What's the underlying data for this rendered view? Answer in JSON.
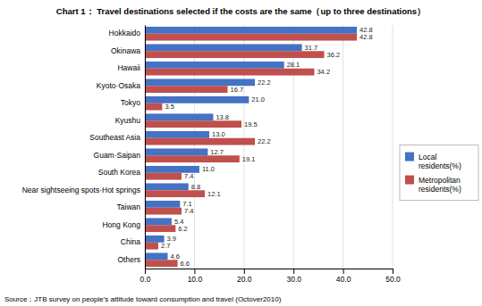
{
  "chart_data": {
    "type": "bar",
    "orientation": "horizontal",
    "title": "Chart 1： Travel destinations selected if the costs are the same（up to three destinations）",
    "annotations": [
      "Source：JTB survey on people’s attitude toward consumption and travel (Octover2010)"
    ],
    "categories": [
      "Others",
      "China",
      "Hong Kong",
      "Taiwan",
      "Near sightseeing spots·Hot springs",
      "South Korea",
      "Guam·Saipan",
      "Southeast Asia",
      "Kyushu",
      "Tokyo",
      "Kyoto·Osaka",
      "Hawaii",
      "Okinawa",
      "Hokkaido"
    ],
    "series": [
      {
        "name": "Local\nresidents(%)",
        "color": "#4472C4",
        "values": [
          4.6,
          3.9,
          5.4,
          7.1,
          8.8,
          11.0,
          12.7,
          13.0,
          13.8,
          21.0,
          22.2,
          28.1,
          31.7,
          42.8
        ],
        "value_labels": [
          "4.6",
          "3.9",
          "5.4",
          "7.1",
          "8.8",
          "11.0",
          "12.7",
          "13.0",
          "13.8",
          "21.0",
          "22.2",
          "28.1",
          "31.7",
          "42.8"
        ]
      },
      {
        "name": "Metropolitan\nresidents(%)",
        "color": "#C0504D",
        "values": [
          6.6,
          2.7,
          6.2,
          7.4,
          12.1,
          7.4,
          19.1,
          22.2,
          19.5,
          3.5,
          16.7,
          34.2,
          36.2,
          42.8
        ],
        "value_labels": [
          "6.6",
          "2.7",
          "6.2",
          "7.4",
          "12.1",
          "7.4",
          "19.1",
          "22.2",
          "19.5",
          "3.5",
          "16.7",
          "34.2",
          "36.2",
          "42.8"
        ]
      }
    ],
    "xlim": [
      0,
      50
    ],
    "xticks": [
      {
        "value": 0,
        "label": "0.0"
      },
      {
        "value": 10,
        "label": "10.0"
      },
      {
        "value": 20,
        "label": "20.0"
      },
      {
        "value": 30,
        "label": "30.0"
      },
      {
        "value": 40,
        "label": "40.0"
      },
      {
        "value": 50,
        "label": "50.0"
      }
    ],
    "grid": true,
    "legend": "lower right",
    "data_labels": true
  }
}
